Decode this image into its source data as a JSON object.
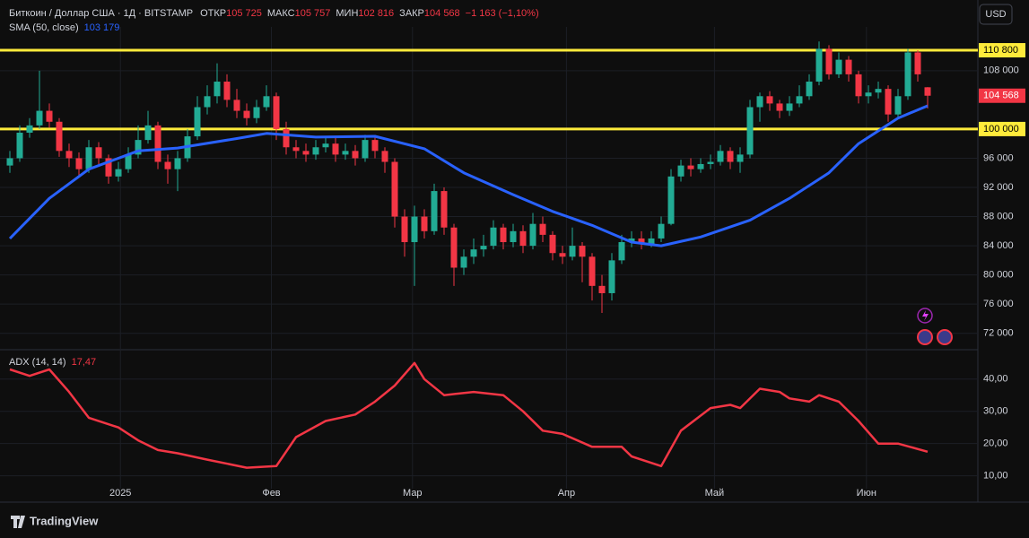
{
  "branding": "TradingView",
  "chart_data": [
    {
      "type": "candlestick",
      "title": "Биткоин / Доллар США · 1Д · BITSTAMP",
      "header_stats": [
        {
          "label": "ОТКР",
          "value": "105 725"
        },
        {
          "label": "МАКС",
          "value": "105 757"
        },
        {
          "label": "МИН",
          "value": "102 816"
        },
        {
          "label": "ЗАКР",
          "value": "104 568"
        }
      ],
      "change": "−1 163 (−1,10%)",
      "currency": "USD",
      "up_color": "#22ab94",
      "down_color": "#f23645",
      "open": [
        95000,
        96000,
        99500,
        100500,
        102500,
        101000,
        97000,
        96000,
        94500,
        97500,
        96000,
        93500,
        94500,
        96500,
        98500,
        100500,
        95500,
        94500,
        96000,
        99000,
        103000,
        104500,
        106500,
        104000,
        102500,
        101500,
        103000,
        104500,
        100000,
        97500,
        97000,
        96500,
        97500,
        98000,
        96500,
        97000,
        96000,
        98500,
        97000,
        95500,
        88000,
        84500,
        88000,
        86000,
        91500,
        86500,
        81000,
        82500,
        83500,
        84000,
        86500,
        84500,
        86000,
        84000,
        87000,
        85500,
        83000,
        82500,
        84000,
        82500,
        78500,
        77500,
        82000,
        84500,
        85000,
        84200,
        85000,
        87000,
        93500,
        95000,
        94500,
        95200,
        95500,
        97000,
        95500,
        96500,
        103000,
        104500,
        103500,
        102500,
        103500,
        104500,
        106500,
        111000,
        107500,
        109500,
        107500,
        104500,
        105000,
        105500,
        102000,
        104500,
        110500,
        105725
      ],
      "high": [
        97000,
        100500,
        101500,
        108000,
        103500,
        101500,
        98000,
        96800,
        98500,
        98200,
        96500,
        95500,
        97500,
        100500,
        102500,
        101000,
        96500,
        97000,
        100000,
        104500,
        106000,
        109000,
        107500,
        105500,
        103500,
        104000,
        106000,
        105000,
        101000,
        98500,
        98000,
        98500,
        99000,
        98800,
        98000,
        97800,
        99200,
        99000,
        97500,
        96000,
        89000,
        89500,
        89000,
        92500,
        92000,
        87000,
        83500,
        85000,
        85500,
        87500,
        87000,
        87000,
        86800,
        88500,
        88000,
        86000,
        84000,
        86500,
        84500,
        83000,
        80000,
        83000,
        85500,
        86000,
        86000,
        86000,
        88000,
        94500,
        95800,
        96000,
        96000,
        96500,
        97800,
        97500,
        97500,
        104000,
        105000,
        105200,
        104000,
        104500,
        106000,
        107500,
        112000,
        111500,
        110500,
        110000,
        108000,
        106000,
        106500,
        106000,
        105500,
        111000,
        110800,
        105757
      ],
      "low": [
        94000,
        95500,
        98800,
        100000,
        100200,
        96200,
        94800,
        93500,
        94000,
        95200,
        92500,
        92800,
        94000,
        96000,
        98000,
        94500,
        92500,
        91500,
        95500,
        98500,
        102000,
        103500,
        103000,
        101500,
        100500,
        100800,
        102500,
        98500,
        96500,
        96000,
        95500,
        95800,
        96800,
        95500,
        95800,
        95000,
        95500,
        96000,
        94000,
        86500,
        82500,
        78500,
        85000,
        85500,
        85500,
        78500,
        80000,
        81500,
        82500,
        83500,
        83500,
        83800,
        83000,
        83500,
        84500,
        82000,
        81500,
        82000,
        79000,
        76500,
        74800,
        76500,
        81500,
        83800,
        83500,
        83800,
        84500,
        86800,
        92800,
        93500,
        94000,
        94500,
        95000,
        94500,
        94000,
        96000,
        101000,
        102500,
        101500,
        101800,
        103000,
        104000,
        106000,
        106800,
        107000,
        106500,
        103500,
        103500,
        104200,
        101000,
        101500,
        104000,
        106500,
        102816
      ],
      "close": [
        96000,
        99500,
        100500,
        102500,
        101000,
        97000,
        96000,
        94500,
        97500,
        96000,
        93500,
        94500,
        96500,
        98500,
        100500,
        95500,
        94500,
        96000,
        99000,
        103000,
        104500,
        106500,
        104000,
        102500,
        101500,
        103000,
        104500,
        100000,
        97500,
        97000,
        96500,
        97500,
        98000,
        96500,
        97000,
        96000,
        98500,
        97000,
        95500,
        88000,
        84500,
        88000,
        86000,
        91500,
        86500,
        81000,
        82500,
        83500,
        84000,
        86500,
        84500,
        86000,
        84000,
        87000,
        85500,
        83000,
        82500,
        84000,
        82500,
        78500,
        77500,
        82000,
        84500,
        85000,
        84200,
        85000,
        87000,
        93500,
        95000,
        94500,
        95200,
        95500,
        97000,
        95500,
        96500,
        103000,
        104500,
        103500,
        102500,
        103500,
        104500,
        106500,
        111000,
        107500,
        109500,
        107500,
        104500,
        105000,
        105500,
        102000,
        104500,
        110500,
        107500,
        104568
      ],
      "last_price": {
        "value": 104568,
        "label": "104 568"
      },
      "overlays": [
        {
          "name": "SMA (50, close)",
          "value_label": "103 179",
          "color": "#2962ff",
          "x": [
            0,
            4,
            8,
            13,
            17,
            23,
            26,
            31,
            37,
            42,
            46,
            51,
            55,
            59,
            63,
            66,
            70,
            75,
            79,
            83,
            86,
            90,
            93
          ],
          "values": [
            85000,
            90500,
            94500,
            97000,
            97400,
            98700,
            99400,
            98900,
            99000,
            97300,
            94000,
            91000,
            88700,
            86800,
            84500,
            84000,
            85200,
            87500,
            90500,
            94000,
            98000,
            101500,
            103179
          ]
        }
      ],
      "levels": [
        {
          "value": 110800,
          "label": "110 800",
          "color": "#ffeb3b"
        },
        {
          "value": 100000,
          "label": "100 000",
          "color": "#ffeb3b"
        }
      ],
      "xlim": [
        -1,
        98
      ],
      "ylim": [
        70000,
        114000
      ],
      "yticks": [
        {
          "value": 72000,
          "label": "72 000"
        },
        {
          "value": 76000,
          "label": "76 000"
        },
        {
          "value": 80000,
          "label": "80 000"
        },
        {
          "value": 84000,
          "label": "84 000"
        },
        {
          "value": 88000,
          "label": "88 000"
        },
        {
          "value": 92000,
          "label": "92 000"
        },
        {
          "value": 96000,
          "label": "96 000"
        },
        {
          "value": 108000,
          "label": "108 000"
        }
      ],
      "grid": true
    },
    {
      "type": "line",
      "series": [
        {
          "name": "ADX (14, 14)",
          "value_label": "17,47",
          "color": "#f23645",
          "x": [
            0,
            2,
            4,
            6,
            8,
            11,
            13,
            15,
            17,
            20,
            24,
            27,
            29,
            32,
            35,
            37,
            39,
            41,
            42,
            44,
            47,
            50,
            52,
            54,
            56,
            59,
            62,
            63,
            66,
            68,
            71,
            73,
            74,
            76,
            78,
            79,
            81,
            82,
            84,
            86,
            88,
            90,
            93
          ],
          "values": [
            43,
            41,
            43,
            36,
            28,
            25,
            21,
            18,
            17,
            15,
            12.5,
            13,
            22,
            27,
            29,
            33,
            38,
            45,
            40,
            35,
            36,
            35,
            30,
            24,
            23,
            19,
            19,
            16,
            13,
            24,
            31,
            32,
            31,
            37,
            36,
            34,
            33,
            35,
            33,
            27,
            20,
            20,
            17.47
          ]
        }
      ],
      "xlim": [
        -1,
        98
      ],
      "ylim": [
        6,
        48
      ],
      "yticks": [
        {
          "value": 10,
          "label": "10,00"
        },
        {
          "value": 20,
          "label": "20,00"
        },
        {
          "value": 30,
          "label": "30,00"
        },
        {
          "value": 40,
          "label": "40,00"
        }
      ],
      "xticks": [
        {
          "value": 11.2,
          "label": "2025"
        },
        {
          "value": 26.5,
          "label": "Фев"
        },
        {
          "value": 40.8,
          "label": "Мар"
        },
        {
          "value": 56.4,
          "label": "Апр"
        },
        {
          "value": 71.4,
          "label": "Май"
        },
        {
          "value": 86.8,
          "label": "Июн"
        }
      ],
      "grid": true
    }
  ]
}
